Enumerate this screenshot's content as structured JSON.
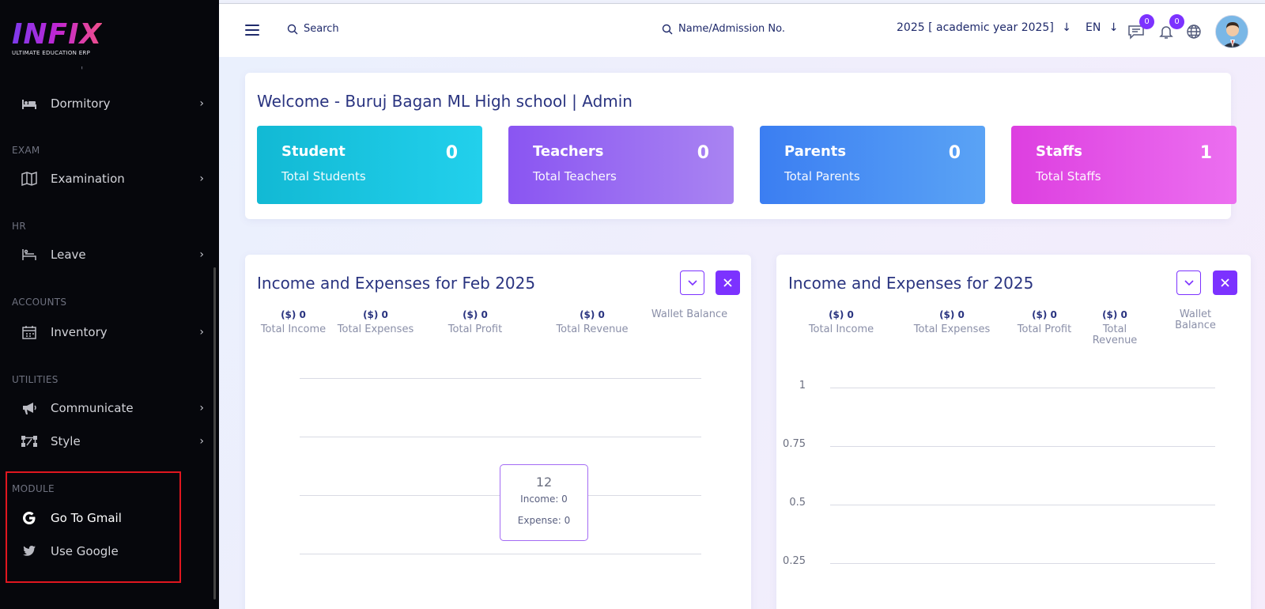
{
  "brand": {
    "logo": "INFIX",
    "tagline": "ULTIMATE EDUCATION ERP"
  },
  "sidebar": {
    "partial_top": "'",
    "items": [
      {
        "label": "Dormitory",
        "icon": "bed-icon"
      },
      {
        "section": "EXAM"
      },
      {
        "label": "Examination",
        "icon": "map-icon"
      },
      {
        "section": "HR"
      },
      {
        "label": "Leave",
        "icon": "leave-bed-icon"
      },
      {
        "section": "ACCOUNTS"
      },
      {
        "label": "Inventory",
        "icon": "calendar-icon"
      },
      {
        "section": "UTILITIES"
      },
      {
        "label": "Communicate",
        "icon": "megaphone-icon"
      },
      {
        "label": "Style",
        "icon": "style-icon"
      },
      {
        "section": "MODULE"
      },
      {
        "label": "Go To Gmail",
        "icon": "google-icon"
      },
      {
        "label": "Use Google",
        "icon": "twitter-icon"
      }
    ]
  },
  "topbar": {
    "search_label": "Search",
    "admission_search_label": "Name/Admission No.",
    "academic_year": "2025 [ academic year 2025]",
    "language": "EN",
    "messages_count": "0",
    "notifications_count": "0"
  },
  "welcome": {
    "title": "Welcome - Buruj Bagan ML High school | Admin",
    "stats": [
      {
        "name": "Student",
        "sub": "Total Students",
        "value": "0"
      },
      {
        "name": "Teachers",
        "sub": "Total Teachers",
        "value": "0"
      },
      {
        "name": "Parents",
        "sub": "Total Parents",
        "value": "0"
      },
      {
        "name": "Staffs",
        "sub": "Total Staffs",
        "value": "1"
      }
    ]
  },
  "monthly_panel": {
    "title": "Income and Expenses for Feb 2025",
    "metrics": [
      {
        "value": "($) 0",
        "label": "Total Income"
      },
      {
        "value": "($) 0",
        "label": "Total Expenses"
      },
      {
        "value": "($) 0",
        "label": "Total Profit"
      },
      {
        "value": "($) 0",
        "label": "Total Revenue"
      },
      {
        "value": "",
        "label": "Wallet Balance"
      }
    ],
    "tooltip": {
      "title": "12",
      "income": "Income: 0",
      "expense": "Expense: 0"
    }
  },
  "yearly_panel": {
    "title": "Income and Expenses for 2025",
    "metrics": [
      {
        "value": "($) 0",
        "label": "Total Income"
      },
      {
        "value": "($) 0",
        "label": "Total Expenses"
      },
      {
        "value": "($) 0",
        "label": "Total Profit"
      },
      {
        "value": "($) 0",
        "label": "Total Revenue"
      },
      {
        "value": "",
        "label": "Wallet Balance"
      }
    ],
    "y_ticks": [
      "1",
      "0.75",
      "0.5",
      "0.25"
    ]
  },
  "colors": {
    "accent": "#7c32ff",
    "student_card": "#1cc8e6",
    "teachers_card": "#9a6bf5",
    "parents_card": "#4d8ef5",
    "staffs_card": "#e64fe6",
    "highlight_box": "#e0161f"
  }
}
